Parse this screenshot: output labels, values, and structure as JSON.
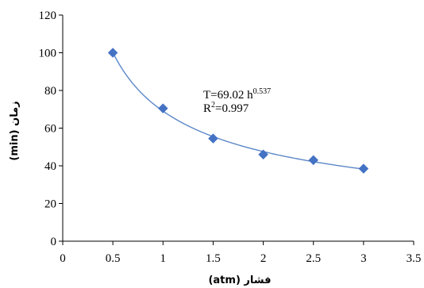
{
  "chart_data": {
    "type": "scatter",
    "xlabel": "فشار (atm)",
    "ylabel": "زمان (min)",
    "xlim": [
      0,
      3.5
    ],
    "ylim": [
      0,
      120
    ],
    "x_ticks": [
      "0",
      "0.5",
      "1",
      "1.5",
      "2",
      "2.5",
      "3",
      "3.5"
    ],
    "y_ticks": [
      "0",
      "20",
      "40",
      "60",
      "80",
      "100",
      "120"
    ],
    "grid": false,
    "legend": "none",
    "marker": "diamond",
    "series": [
      {
        "x": [
          0.5,
          1,
          1.5,
          2,
          2.5,
          3
        ],
        "y": [
          100,
          70.5,
          54.5,
          46,
          43,
          38.5
        ]
      }
    ],
    "trendline": {
      "type": "power",
      "coefficient": 69.02,
      "exponent": -0.537
    },
    "annotations": {
      "equation_main": "T=69.02 h",
      "equation_sup": "0.537",
      "r2_prefix": "R",
      "r2_sup": "2",
      "r2_value": "=0.997"
    },
    "colors": {
      "marker": "#4472C4",
      "trendline": "#5B87C8",
      "axis": "#000000"
    }
  }
}
